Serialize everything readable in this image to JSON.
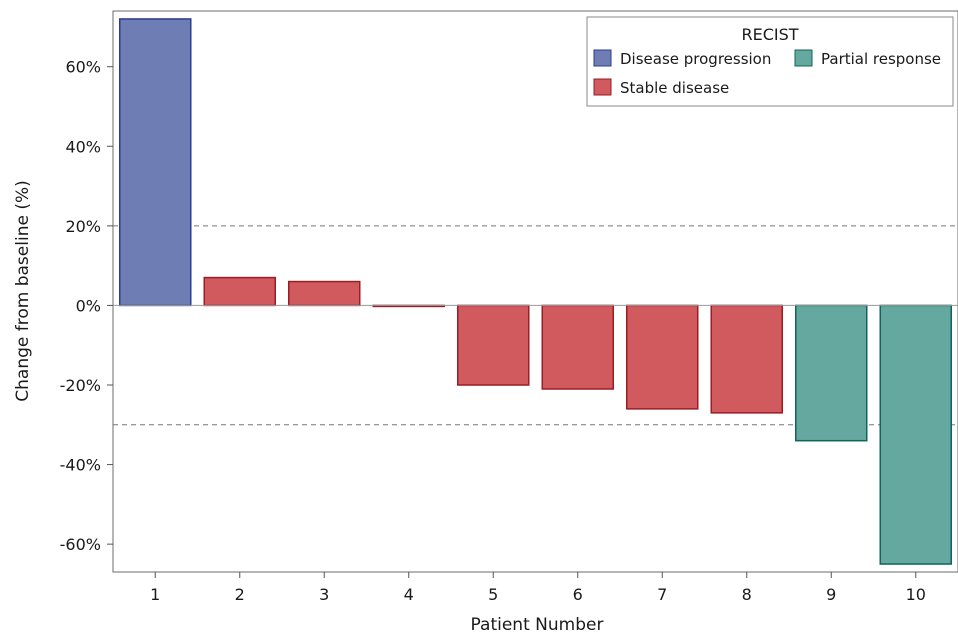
{
  "chart_data": {
    "type": "bar",
    "categories": [
      "1",
      "2",
      "3",
      "4",
      "5",
      "6",
      "7",
      "8",
      "9",
      "10"
    ],
    "values": [
      72,
      7,
      6,
      0,
      -20,
      -21,
      -26,
      -27,
      -34,
      -65
    ],
    "response": [
      "Disease progression",
      "Stable disease",
      "Stable disease",
      "Stable disease",
      "Stable disease",
      "Stable disease",
      "Stable disease",
      "Stable disease",
      "Partial response",
      "Partial response"
    ],
    "xlabel": "Patient Number",
    "ylabel": "Change from baseline (%)",
    "ylim": [
      -67,
      74
    ],
    "yticks": [
      -60,
      -40,
      -20,
      0,
      20,
      40,
      60
    ],
    "ytick_labels": [
      "-60%",
      "-40%",
      "-20%",
      "0%",
      "20%",
      "40%",
      "60%"
    ],
    "reference_lines": [
      20,
      -30
    ],
    "legend": {
      "title": "RECIST",
      "placement": "top-right",
      "entries": [
        {
          "label": "Disease progression",
          "color": "#6f7db5"
        },
        {
          "label": "Partial response",
          "color": "#64a89f"
        },
        {
          "label": "Stable disease",
          "color": "#d05a5e"
        }
      ]
    },
    "edge_colors": {
      "Disease progression": "#2a3d8f",
      "Stable disease": "#9b1c22",
      "Partial response": "#11645a"
    },
    "grid": false
  }
}
